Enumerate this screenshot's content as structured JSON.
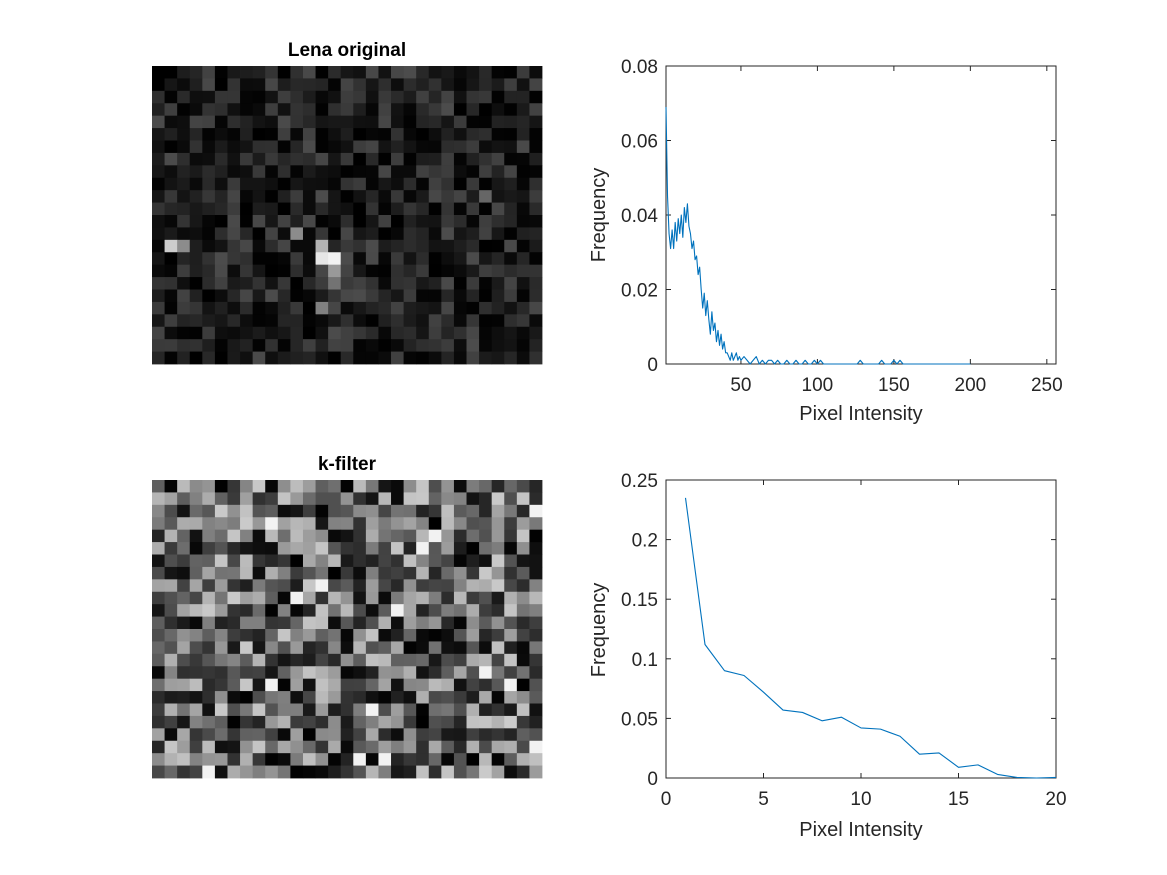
{
  "chart_data": [
    {
      "type": "heatmap",
      "title": "Lena original",
      "rows": 24,
      "cols": 31,
      "max_gray": 0.3,
      "bright_spots": [
        [
          15,
          14,
          0.95
        ],
        [
          15,
          13,
          0.9
        ],
        [
          14,
          13,
          0.7
        ],
        [
          16,
          14,
          0.6
        ],
        [
          17,
          14,
          0.45
        ],
        [
          14,
          1,
          0.8
        ],
        [
          14,
          2,
          0.55
        ],
        [
          13,
          11,
          0.55
        ],
        [
          19,
          13,
          0.5
        ],
        [
          10,
          26,
          0.4
        ]
      ]
    },
    {
      "type": "line",
      "title": "",
      "xlabel": "Pixel Intensity",
      "ylabel": "Frequency",
      "xlim": [
        1,
        256
      ],
      "ylim": [
        0,
        0.08
      ],
      "xticks": [
        50,
        100,
        150,
        200,
        250
      ],
      "yticks": [
        0,
        0.02,
        0.04,
        0.06,
        0.08
      ],
      "ytick_labels": [
        "0",
        "0.02",
        "0.04",
        "0.06",
        "0.08"
      ],
      "grid": false,
      "series": [
        {
          "color": "#0072BD",
          "x": [
            1,
            2,
            3,
            4,
            5,
            6,
            7,
            8,
            9,
            10,
            11,
            12,
            13,
            14,
            15,
            16,
            17,
            18,
            19,
            20,
            21,
            22,
            23,
            24,
            25,
            26,
            27,
            28,
            29,
            30,
            31,
            32,
            33,
            34,
            35,
            36,
            37,
            38,
            39,
            40,
            41,
            42,
            43,
            44,
            45,
            46,
            47,
            48,
            49,
            50,
            52,
            54,
            56,
            58,
            60,
            62,
            64,
            66,
            68,
            70,
            72,
            74,
            76,
            78,
            80,
            82,
            84,
            86,
            88,
            90,
            92,
            94,
            96,
            98,
            100,
            102,
            104,
            106,
            108,
            110,
            112,
            114,
            116,
            118,
            120,
            122,
            124,
            126,
            128,
            130,
            132,
            134,
            136,
            138,
            140,
            142,
            144,
            146,
            148,
            150,
            152,
            154,
            156,
            158,
            160,
            165,
            170,
            175,
            180,
            185,
            190,
            195,
            200
          ],
          "y": [
            0.069,
            0.045,
            0.035,
            0.031,
            0.036,
            0.031,
            0.038,
            0.033,
            0.039,
            0.035,
            0.04,
            0.034,
            0.042,
            0.038,
            0.043,
            0.037,
            0.035,
            0.031,
            0.033,
            0.028,
            0.029,
            0.024,
            0.026,
            0.02,
            0.015,
            0.019,
            0.013,
            0.017,
            0.012,
            0.008,
            0.014,
            0.009,
            0.011,
            0.006,
            0.009,
            0.005,
            0.008,
            0.004,
            0.006,
            0.003,
            0.003,
            0.002,
            0.001,
            0.003,
            0.001,
            0.002,
            0.003,
            0.001,
            0.002,
            0.001,
            0.002,
            0.001,
            0.0,
            0.001,
            0.002,
            0.0,
            0.001,
            0.0,
            0.001,
            0.001,
            0.0,
            0.001,
            0.0,
            0.0,
            0.001,
            0.0,
            0.0,
            0.001,
            0.0,
            0.0,
            0.001,
            0.0,
            0.0,
            0.001,
            0.0,
            0.001,
            0.0,
            0.0,
            0.0,
            0.0,
            0.0,
            0.0,
            0.0,
            0.0,
            0.0,
            0.0,
            0.0,
            0.0,
            0.001,
            0.0,
            0.0,
            0.0,
            0.0,
            0.0,
            0.0,
            0.001,
            0.0,
            0.0,
            0.0,
            0.001,
            0.0,
            0.001,
            0.0,
            0.0,
            0.0,
            0.0,
            0.0,
            0.0,
            0.0,
            0.0,
            0.0,
            0.0,
            0.0
          ]
        }
      ]
    },
    {
      "type": "heatmap",
      "title": "k-filter",
      "rows": 24,
      "cols": 31,
      "max_gray": 0.8
    },
    {
      "type": "line",
      "title": "",
      "xlabel": "Pixel Intensity",
      "ylabel": "Frequency",
      "xlim": [
        0,
        20
      ],
      "ylim": [
        0,
        0.25
      ],
      "xticks": [
        0,
        5,
        10,
        15,
        20
      ],
      "yticks": [
        0,
        0.05,
        0.1,
        0.15,
        0.2,
        0.25
      ],
      "ytick_labels": [
        "0",
        "0.05",
        "0.1",
        "0.15",
        "0.2",
        "0.25"
      ],
      "grid": false,
      "series": [
        {
          "color": "#0072BD",
          "x": [
            1,
            2,
            3,
            4,
            5,
            6,
            7,
            8,
            9,
            10,
            11,
            12,
            13,
            14,
            15,
            16,
            17,
            18,
            19,
            20
          ],
          "y": [
            0.235,
            0.112,
            0.09,
            0.086,
            0.072,
            0.057,
            0.055,
            0.048,
            0.051,
            0.042,
            0.041,
            0.035,
            0.02,
            0.021,
            0.009,
            0.011,
            0.003,
            0.0005,
            0.0,
            0.0005
          ]
        }
      ]
    }
  ]
}
